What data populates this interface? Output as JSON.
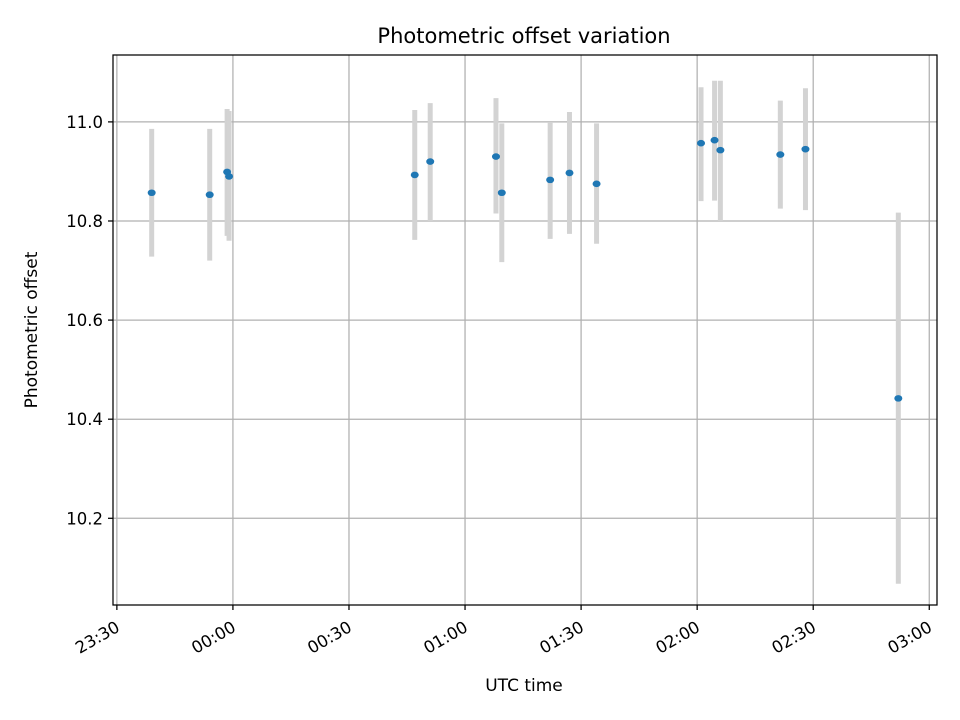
{
  "chart_data": {
    "type": "scatter",
    "title": "Photometric offset variation",
    "xlabel": "UTC time",
    "ylabel": "Photometric offset",
    "grid": true,
    "xlim": [
      "23:29",
      "03:02"
    ],
    "ylim": [
      10.025,
      11.135
    ],
    "x_ticks": [
      "23:30",
      "00:00",
      "00:30",
      "01:00",
      "01:30",
      "02:00",
      "02:30",
      "03:00"
    ],
    "y_ticks": [
      10.2,
      10.4,
      10.6,
      10.8,
      11.0
    ],
    "y_tick_labels": [
      "10.2",
      "10.4",
      "10.6",
      "10.8",
      "11.0"
    ],
    "colors": {
      "marker": "#1f77b4",
      "error_bar": "#d3d3d3",
      "grid": "#b0b0b0"
    },
    "series": [
      {
        "points": [
          {
            "x": "23:39",
            "y": 10.857,
            "ylow": 10.728,
            "yhigh": 10.986
          },
          {
            "x": "23:54",
            "y": 10.853,
            "ylow": 10.72,
            "yhigh": 10.986
          },
          {
            "x": "23:58.5",
            "y": 10.899,
            "ylow": 10.77,
            "yhigh": 11.026
          },
          {
            "x": "23:59",
            "y": 10.89,
            "ylow": 10.76,
            "yhigh": 11.022
          },
          {
            "x": "00:47",
            "y": 10.893,
            "ylow": 10.762,
            "yhigh": 11.024
          },
          {
            "x": "00:51",
            "y": 10.92,
            "ylow": 10.8,
            "yhigh": 11.038
          },
          {
            "x": "01:08",
            "y": 10.93,
            "ylow": 10.815,
            "yhigh": 11.048
          },
          {
            "x": "01:09.5",
            "y": 10.857,
            "ylow": 10.717,
            "yhigh": 10.997
          },
          {
            "x": "01:22",
            "y": 10.883,
            "ylow": 10.764,
            "yhigh": 10.998
          },
          {
            "x": "01:27",
            "y": 10.897,
            "ylow": 10.774,
            "yhigh": 11.02
          },
          {
            "x": "01:34",
            "y": 10.875,
            "ylow": 10.754,
            "yhigh": 10.997
          },
          {
            "x": "02:01",
            "y": 10.957,
            "ylow": 10.84,
            "yhigh": 11.07
          },
          {
            "x": "02:04.5",
            "y": 10.963,
            "ylow": 10.841,
            "yhigh": 11.083
          },
          {
            "x": "02:06",
            "y": 10.943,
            "ylow": 10.8,
            "yhigh": 11.083
          },
          {
            "x": "02:21.5",
            "y": 10.934,
            "ylow": 10.825,
            "yhigh": 11.043
          },
          {
            "x": "02:28",
            "y": 10.945,
            "ylow": 10.822,
            "yhigh": 11.068
          },
          {
            "x": "02:52",
            "y": 10.442,
            "ylow": 10.068,
            "yhigh": 10.817
          }
        ]
      }
    ]
  }
}
